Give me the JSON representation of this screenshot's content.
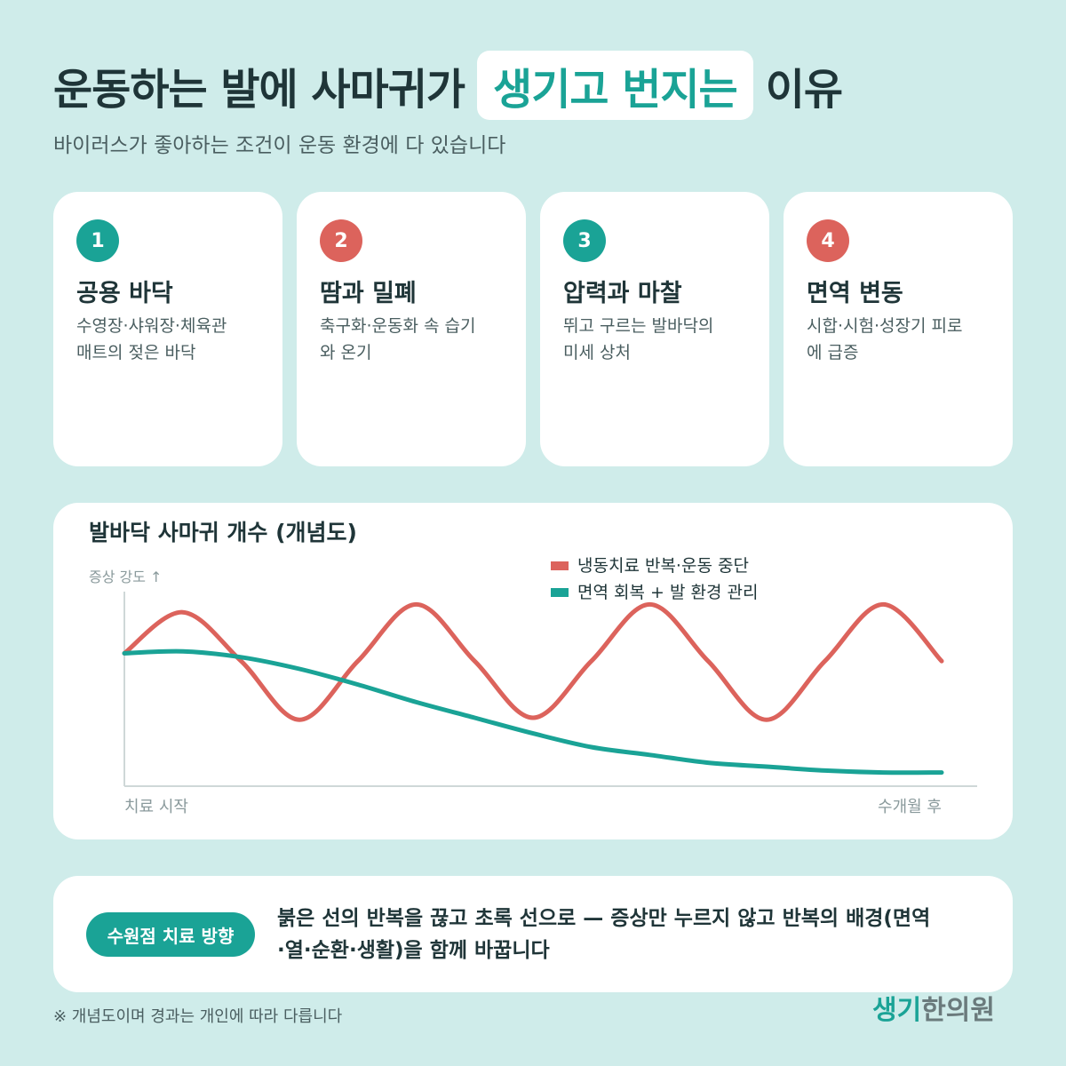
{
  "header": {
    "title_parts": [
      "운동하는 발에 사마귀가",
      "생기고 번지는",
      "이유"
    ],
    "subtitle": "바이러스가 좋아하는 조건이 운동 환경에 다 있습니다"
  },
  "cards": [
    {
      "number": 1,
      "title": "공용 바닥",
      "lines": [
        "수영장·샤워장·체육관",
        "매트의 젖은 바닥"
      ]
    },
    {
      "number": 2,
      "title": "땀과 밀폐",
      "lines": [
        "축구화·운동화 속 습기",
        "와 온기"
      ]
    },
    {
      "number": 3,
      "title": "압력과 마찰",
      "lines": [
        "뛰고 구르는 발바닥의",
        "미세 상처"
      ]
    },
    {
      "number": 4,
      "title": "면역 변동",
      "lines": [
        "시합·시험·성장기 피로",
        "에 급증"
      ]
    }
  ],
  "chart_data": {
    "type": "line",
    "title": "발바닥 사마귀 개수 (개념도)",
    "y_label": "증상 강도 ↑",
    "categories": [
      "치료 시작",
      null,
      null,
      null,
      null,
      null,
      null,
      null,
      null,
      null,
      null,
      null,
      null,
      null,
      "수개월 후"
    ],
    "ylim": [
      0,
      100
    ],
    "legend": "top-right",
    "series": [
      {
        "name": "냉동치료 반복·운동 중단",
        "color": "#dc635c",
        "values": [
          68,
          89,
          64,
          34,
          64,
          93,
          64,
          35,
          64,
          93,
          64,
          34,
          64,
          93,
          64
        ]
      },
      {
        "name": "면역 회복 + 발 환경 관리",
        "color": "#1aa396",
        "values": [
          68,
          69,
          66,
          60,
          52,
          43,
          35,
          27,
          20,
          16,
          12,
          10,
          8,
          7,
          7
        ]
      }
    ]
  },
  "note": {
    "badge": "수원점 치료 방향",
    "lines": [
      "붉은 선의 반복을 끊고 초록 선으로 — 증상만 누르지 않고 반복의 배경(면역",
      "·열·순환·생활)을 함께 바꿉니다"
    ]
  },
  "footer": {
    "disclaimer": "※ 개념도이며 경과는 개인에 따라 다릅니다",
    "logo_parts": [
      "생기",
      "한의원"
    ]
  }
}
